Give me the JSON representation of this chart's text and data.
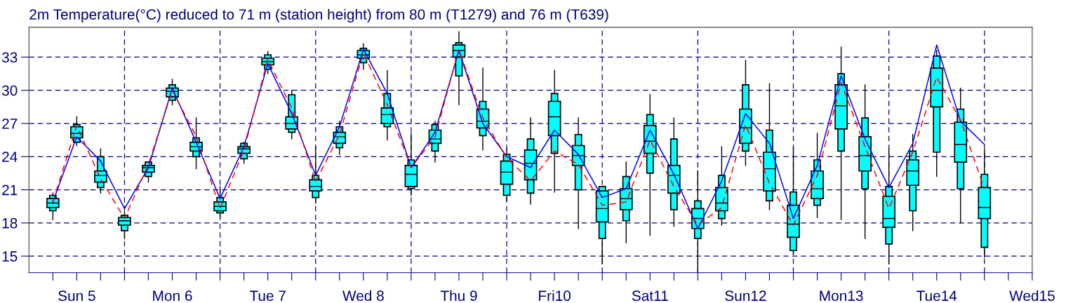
{
  "chart_data": {
    "type": "box",
    "title": "2m Temperature(°C) reduced to 71 m (station height) from 80 m (T1279) and 76 m (T639)",
    "categories": [
      null,
      "Sun 5",
      null,
      null,
      null,
      "Mon 6",
      null,
      null,
      null,
      "Tue 7",
      null,
      null,
      null,
      "Wed 8",
      null,
      null,
      null,
      "Thu 9",
      null,
      null,
      null,
      "Fri10",
      null,
      null,
      null,
      "Sat11",
      null,
      null,
      null,
      "Sun12",
      null,
      null,
      null,
      "Mon13",
      null,
      null,
      null,
      "Tue14",
      null,
      null,
      null,
      "Wed15"
    ],
    "ylim": [
      13.5,
      35.7
    ],
    "yticks": [
      15,
      18,
      21,
      24,
      27,
      30,
      33
    ],
    "grid": true,
    "series": [
      {
        "color": "#00ffff",
        "boxes": [
          {
            "low": 18.3,
            "q1": 19.1,
            "median": 19.8,
            "q3": 20.5,
            "high": 20.7
          },
          {
            "low": 25.0,
            "q1": 25.3,
            "median": 26.1,
            "q3": 26.9,
            "high": 27.6
          },
          {
            "low": 20.7,
            "q1": 21.2,
            "median": 22.3,
            "q3": 24.0,
            "high": 24.7
          },
          {
            "low": 16.6,
            "q1": 17.3,
            "median": 18.2,
            "q3": 18.7,
            "high": 19.0
          },
          {
            "low": 21.7,
            "q1": 22.2,
            "median": 23.0,
            "q3": 23.5,
            "high": 23.5
          },
          {
            "low": 28.7,
            "q1": 29.1,
            "median": 29.9,
            "q3": 30.5,
            "high": 31.0
          },
          {
            "low": 22.9,
            "q1": 24.0,
            "median": 24.9,
            "q3": 25.7,
            "high": 27.5
          },
          {
            "low": 18.5,
            "q1": 18.9,
            "median": 19.5,
            "q3": 20.3,
            "high": 21.3
          },
          {
            "low": 23.4,
            "q1": 23.8,
            "median": 24.7,
            "q3": 25.2,
            "high": 25.3
          },
          {
            "low": 31.5,
            "q1": 31.9,
            "median": 32.6,
            "q3": 33.2,
            "high": 33.5
          },
          {
            "low": 25.6,
            "q1": 26.2,
            "median": 27.0,
            "q3": 29.6,
            "high": 30.0
          },
          {
            "low": 19.8,
            "q1": 20.3,
            "median": 21.3,
            "q3": 22.3,
            "high": 24.9
          },
          {
            "low": 24.2,
            "q1": 24.8,
            "median": 25.8,
            "q3": 26.7,
            "high": 27.2
          },
          {
            "low": 31.9,
            "q1": 32.5,
            "median": 33.2,
            "q3": 33.8,
            "high": 34.2
          },
          {
            "low": 25.5,
            "q1": 26.7,
            "median": 27.8,
            "q3": 29.7,
            "high": 31.8
          },
          {
            "low": 20.5,
            "q1": 21.1,
            "median": 22.4,
            "q3": 23.7,
            "high": 26.1
          },
          {
            "low": 23.5,
            "q1": 24.5,
            "median": 25.6,
            "q3": 26.9,
            "high": 27.2
          },
          {
            "low": 28.7,
            "q1": 31.3,
            "median": 33.6,
            "q3": 34.3,
            "high": 35.3
          },
          {
            "low": 24.6,
            "q1": 25.9,
            "median": 27.2,
            "q3": 29.0,
            "high": 32.0
          },
          {
            "low": 20.0,
            "q1": 20.5,
            "median": 22.6,
            "q3": 24.2,
            "high": 24.7
          },
          {
            "low": 19.7,
            "q1": 20.7,
            "median": 23.4,
            "q3": 25.6,
            "high": 27.5
          },
          {
            "low": 20.8,
            "q1": 24.3,
            "median": 27.6,
            "q3": 29.7,
            "high": 31.8
          },
          {
            "low": 17.5,
            "q1": 21.0,
            "median": 24.1,
            "q3": 26.0,
            "high": 27.5
          },
          {
            "low": 14.3,
            "q1": 16.6,
            "median": 19.3,
            "q3": 21.3,
            "high": 21.3
          },
          {
            "low": 16.2,
            "q1": 18.2,
            "median": 20.2,
            "q3": 22.2,
            "high": 23.5
          },
          {
            "low": 16.9,
            "q1": 22.5,
            "median": 25.4,
            "q3": 27.8,
            "high": 29.6
          },
          {
            "low": 17.7,
            "q1": 19.2,
            "median": 22.3,
            "q3": 25.6,
            "high": 27.5
          },
          {
            "low": 13.6,
            "q1": 16.6,
            "median": 18.4,
            "q3": 20.0,
            "high": 22.7
          },
          {
            "low": 17.8,
            "q1": 18.4,
            "median": 19.8,
            "q3": 22.3,
            "high": 24.9
          },
          {
            "low": 23.2,
            "q1": 24.5,
            "median": 26.6,
            "q3": 30.5,
            "high": 32.7
          },
          {
            "low": 19.2,
            "q1": 20.0,
            "median": 22.9,
            "q3": 26.4,
            "high": 30.6
          },
          {
            "low": 15.2,
            "q1": 15.5,
            "median": 17.9,
            "q3": 20.8,
            "high": 24.8
          },
          {
            "low": 18.5,
            "q1": 19.6,
            "median": 21.1,
            "q3": 23.7,
            "high": 26.1
          },
          {
            "low": 18.3,
            "q1": 24.5,
            "median": 28.6,
            "q3": 31.5,
            "high": 33.9
          },
          {
            "low": 16.6,
            "q1": 21.1,
            "median": 24.1,
            "q3": 27.5,
            "high": 30.5
          },
          {
            "low": 14.3,
            "q1": 16.1,
            "median": 18.4,
            "q3": 21.3,
            "high": 24.7
          },
          {
            "low": 17.3,
            "q1": 19.1,
            "median": 22.7,
            "q3": 24.5,
            "high": 26.0
          },
          {
            "low": 22.2,
            "q1": 24.4,
            "median": 30.0,
            "q3": 33.1,
            "high": 33.6
          },
          {
            "low": 18.0,
            "q1": 21.1,
            "median": 25.1,
            "q3": 28.3,
            "high": 30.2
          },
          {
            "low": 14.9,
            "q1": 15.8,
            "median": 19.4,
            "q3": 22.4,
            "high": 24.6
          },
          null,
          null
        ]
      },
      {
        "color": "#00ffff",
        "boxes": [
          {
            "low": 19.4,
            "q1": 19.4,
            "median": 19.8,
            "q3": 20.2,
            "high": 20.2
          },
          {
            "low": 25.7,
            "q1": 25.7,
            "median": 26.1,
            "q3": 26.7,
            "high": 26.7
          },
          {
            "low": 21.7,
            "q1": 21.7,
            "median": 22.3,
            "q3": 22.7,
            "high": 22.7
          },
          {
            "low": 17.8,
            "q1": 17.8,
            "median": 18.2,
            "q3": 18.5,
            "high": 18.5
          },
          {
            "low": 22.6,
            "q1": 22.6,
            "median": 23.0,
            "q3": 23.2,
            "high": 23.2
          },
          {
            "low": 29.4,
            "q1": 29.4,
            "median": 29.9,
            "q3": 30.2,
            "high": 30.2
          },
          {
            "low": 24.5,
            "q1": 24.5,
            "median": 24.9,
            "q3": 25.3,
            "high": 25.3
          },
          {
            "low": 19.1,
            "q1": 19.1,
            "median": 19.5,
            "q3": 19.9,
            "high": 19.9
          },
          {
            "low": 24.3,
            "q1": 24.3,
            "median": 24.7,
            "q3": 24.9,
            "high": 24.9
          },
          {
            "low": 32.3,
            "q1": 32.3,
            "median": 32.6,
            "q3": 32.9,
            "high": 32.9
          },
          {
            "low": 26.5,
            "q1": 26.5,
            "median": 27.0,
            "q3": 27.6,
            "high": 27.6
          },
          {
            "low": 20.9,
            "q1": 20.9,
            "median": 21.3,
            "q3": 21.9,
            "high": 21.9
          },
          {
            "low": 25.2,
            "q1": 25.2,
            "median": 25.8,
            "q3": 26.2,
            "high": 26.2
          },
          {
            "low": 32.9,
            "q1": 32.9,
            "median": 33.2,
            "q3": 33.6,
            "high": 33.6
          },
          {
            "low": 27.0,
            "q1": 27.0,
            "median": 27.8,
            "q3": 28.4,
            "high": 28.4
          },
          {
            "low": 21.3,
            "q1": 21.3,
            "median": 22.4,
            "q3": 23.2,
            "high": 23.2
          },
          {
            "low": 25.2,
            "q1": 25.2,
            "median": 25.6,
            "q3": 26.4,
            "high": 26.4
          },
          {
            "low": 33.0,
            "q1": 33.0,
            "median": 33.6,
            "q3": 34.1,
            "high": 34.1
          },
          {
            "low": 26.6,
            "q1": 26.6,
            "median": 27.2,
            "q3": 28.3,
            "high": 28.3
          },
          {
            "low": 21.5,
            "q1": 21.5,
            "median": 22.6,
            "q3": 23.6,
            "high": 23.6
          },
          {
            "low": 21.9,
            "q1": 21.9,
            "median": 23.4,
            "q3": 24.6,
            "high": 24.6
          },
          {
            "low": 25.9,
            "q1": 25.9,
            "median": 27.6,
            "q3": 29.0,
            "high": 29.0
          },
          {
            "low": 23.2,
            "q1": 23.2,
            "median": 24.1,
            "q3": 25.0,
            "high": 25.0
          },
          {
            "low": 18.1,
            "q1": 18.1,
            "median": 19.3,
            "q3": 20.9,
            "high": 20.9
          },
          {
            "low": 19.2,
            "q1": 19.2,
            "median": 20.2,
            "q3": 21.1,
            "high": 21.1
          },
          {
            "low": 24.3,
            "q1": 24.3,
            "median": 25.4,
            "q3": 26.8,
            "high": 26.8
          },
          {
            "low": 20.7,
            "q1": 20.7,
            "median": 22.3,
            "q3": 23.2,
            "high": 23.2
          },
          {
            "low": 17.5,
            "q1": 17.5,
            "median": 18.4,
            "q3": 19.3,
            "high": 19.3
          },
          {
            "low": 19.1,
            "q1": 19.1,
            "median": 19.8,
            "q3": 21.2,
            "high": 21.2
          },
          {
            "low": 25.2,
            "q1": 25.2,
            "median": 26.6,
            "q3": 28.3,
            "high": 28.3
          },
          {
            "low": 20.9,
            "q1": 20.9,
            "median": 22.9,
            "q3": 24.4,
            "high": 24.4
          },
          {
            "low": 16.7,
            "q1": 16.7,
            "median": 17.9,
            "q3": 19.6,
            "high": 19.6
          },
          {
            "low": 20.2,
            "q1": 20.2,
            "median": 21.1,
            "q3": 22.7,
            "high": 22.7
          },
          {
            "low": 26.5,
            "q1": 26.5,
            "median": 28.6,
            "q3": 30.5,
            "high": 30.5
          },
          {
            "low": 22.7,
            "q1": 22.7,
            "median": 24.1,
            "q3": 25.8,
            "high": 25.8
          },
          {
            "low": 17.6,
            "q1": 17.6,
            "median": 18.4,
            "q3": 20.4,
            "high": 20.4
          },
          {
            "low": 21.4,
            "q1": 21.4,
            "median": 22.7,
            "q3": 23.7,
            "high": 23.7
          },
          {
            "low": 28.5,
            "q1": 28.5,
            "median": 30.0,
            "q3": 32.0,
            "high": 32.0
          },
          {
            "low": 23.5,
            "q1": 23.5,
            "median": 25.1,
            "q3": 27.1,
            "high": 27.1
          },
          {
            "low": 18.4,
            "q1": 18.4,
            "median": 19.4,
            "q3": 21.2,
            "high": 21.2
          },
          null,
          null
        ]
      },
      {
        "type": "line",
        "color": "#0000ff",
        "line_style": "solid",
        "values": [
          19.9,
          25.8,
          23.6,
          19.3,
          23.0,
          30.2,
          25.3,
          20.2,
          24.9,
          32.4,
          27.9,
          22.3,
          26.7,
          33.7,
          29.7,
          23.0,
          26.2,
          33.6,
          27.0,
          24.0,
          23.0,
          26.4,
          24.2,
          20.3,
          21.1,
          26.4,
          22.4,
          17.5,
          21.8,
          27.9,
          25.2,
          18.4,
          23.2,
          31.3,
          25.6,
          21.2,
          25.2,
          34.1,
          27.2,
          25.1,
          null,
          null
        ]
      },
      {
        "type": "line",
        "color": "#ff0000",
        "line_style": "dashed",
        "values": [
          19.9,
          26.8,
          22.0,
          18.4,
          23.3,
          30.0,
          25.8,
          19.3,
          24.6,
          32.8,
          28.4,
          21.7,
          26.0,
          33.4,
          28.7,
          23.0,
          25.8,
          33.7,
          27.5,
          23.9,
          21.8,
          24.5,
          23.3,
          19.6,
          19.9,
          25.5,
          21.3,
          17.8,
          19.4,
          26.9,
          21.6,
          17.8,
          22.3,
          30.7,
          24.9,
          19.3,
          24.4,
          31.2,
          27.3,
          21.1,
          null,
          null
        ]
      }
    ]
  }
}
